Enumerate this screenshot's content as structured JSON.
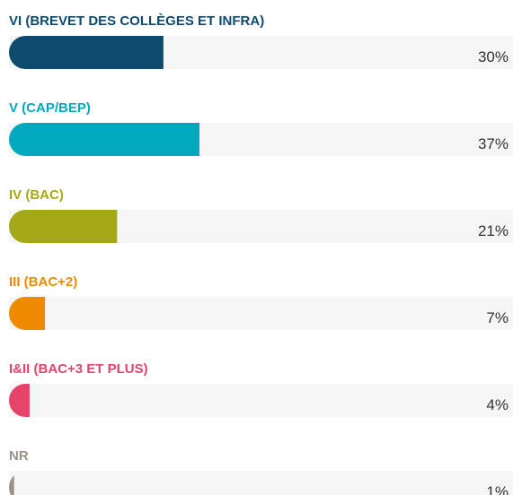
{
  "chart_data": {
    "type": "bar",
    "categories": [
      "VI (BREVET DES COLLÈGES ET INFRA)",
      "V (CAP/BEP)",
      "IV (BAC)",
      "III (BAC+2)",
      "I&II (BAC+3 ET PLUS)",
      "NR"
    ],
    "values": [
      30,
      37,
      21,
      7,
      4,
      1
    ],
    "value_labels": [
      "30%",
      "37%",
      "21%",
      "7%",
      "4%",
      "1%"
    ],
    "colors": [
      "#0d4a6e",
      "#00a8bd",
      "#a3a816",
      "#f08a00",
      "#e6436a",
      "#9c9188"
    ]
  }
}
